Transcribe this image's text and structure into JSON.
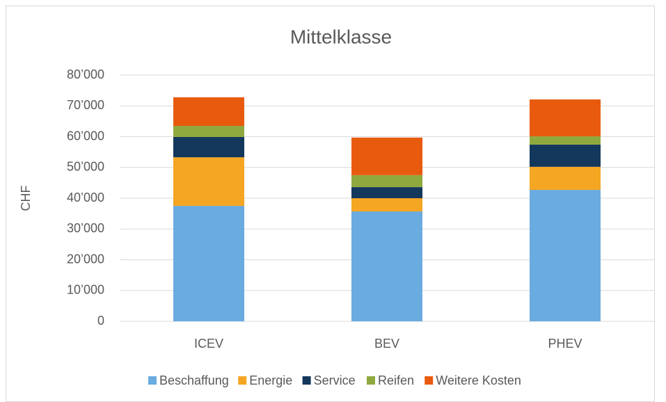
{
  "chart_data": {
    "type": "stacked_bar",
    "title": "Mittelklasse",
    "y_label": "CHF",
    "categories": [
      "ICEV",
      "BEV",
      "PHEV"
    ],
    "series": [
      {
        "name": "Beschaffung",
        "color": "#6aabe0",
        "values": [
          37500,
          35700,
          42700
        ]
      },
      {
        "name": "Energie",
        "color": "#f5a623",
        "values": [
          15800,
          4300,
          7500
        ]
      },
      {
        "name": "Service",
        "color": "#14375c",
        "values": [
          6600,
          3600,
          7200
        ]
      },
      {
        "name": "Reifen",
        "color": "#90a93f",
        "values": [
          3600,
          3900,
          2700
        ]
      },
      {
        "name": "Weitere Kosten",
        "color": "#e85b0f",
        "values": [
          9300,
          12200,
          12000
        ]
      }
    ],
    "ylim": [
      0,
      80000
    ],
    "yticks": [
      0,
      {
        "value": 10000,
        "label": "10’000"
      },
      {
        "value": 20000,
        "label": "20’000"
      },
      {
        "value": 30000,
        "label": "30’000"
      },
      {
        "value": 40000,
        "label": "40’000"
      },
      {
        "value": 50000,
        "label": "50’000"
      },
      {
        "value": 60000,
        "label": "60’000"
      },
      {
        "value": 70000,
        "label": "70’000"
      },
      {
        "value": 80000,
        "label": "80’000"
      }
    ],
    "grid": true,
    "legend": "bottom"
  }
}
